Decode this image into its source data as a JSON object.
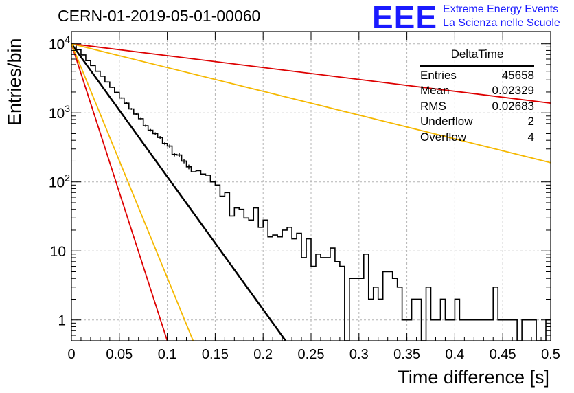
{
  "title": "CERN-01-2019-05-01-00060",
  "logo": {
    "mark": "EEE",
    "line1": "Extreme Energy Events",
    "line2": "La Scienza nelle Scuole"
  },
  "stats_box": {
    "name": "DeltaTime",
    "rows": [
      {
        "label": "Entries",
        "value": "45658"
      },
      {
        "label": "Mean",
        "value": "0.02329"
      },
      {
        "label": "RMS",
        "value": "0.02683"
      },
      {
        "label": "Underflow",
        "value": "2"
      },
      {
        "label": "Overflow",
        "value": "4"
      }
    ]
  },
  "colors": {
    "histogram": "#000000",
    "fit": "#000000",
    "red": "#dd0000",
    "orange": "#f5b800",
    "grid": "#b4b4b4"
  },
  "chart_data": {
    "type": "line",
    "xlabel": "Time difference [s]",
    "ylabel": "Entries/bin",
    "xlim": [
      0,
      0.5
    ],
    "ylim": [
      0.5,
      15000
    ],
    "yscale": "log",
    "grid": true,
    "x_ticks": [
      "0",
      "0.05",
      "0.1",
      "0.15",
      "0.2",
      "0.25",
      "0.3",
      "0.35",
      "0.4",
      "0.45",
      "0.5"
    ],
    "x_tick_values": [
      0,
      0.05,
      0.1,
      0.15,
      0.2,
      0.25,
      0.3,
      0.35,
      0.4,
      0.45,
      0.5
    ],
    "y_ticks": [
      {
        "value": 10000,
        "base": "10",
        "exp": "4"
      },
      {
        "value": 1000,
        "base": "10",
        "exp": "3"
      },
      {
        "value": 100,
        "base": "10",
        "exp": "2"
      },
      {
        "value": 10,
        "base": "10",
        "exp": ""
      },
      {
        "value": 1,
        "base": "1",
        "exp": ""
      }
    ],
    "histogram": {
      "bin_width": 0.005,
      "values": [
        9800,
        8200,
        6900,
        5700,
        4850,
        4000,
        3400,
        2800,
        2350,
        1980,
        1640,
        1380,
        1140,
        960,
        820,
        650,
        560,
        500,
        440,
        360,
        330,
        250,
        245,
        200,
        165,
        140,
        145,
        130,
        125,
        100,
        90,
        62,
        70,
        32,
        42,
        40,
        30,
        28,
        42,
        22,
        28,
        16,
        17,
        16,
        20,
        22,
        15,
        18,
        8,
        15,
        6,
        9,
        8,
        8,
        11,
        7,
        6,
        0,
        4,
        4,
        4,
        9,
        2,
        3,
        2,
        5,
        5,
        4,
        3,
        1,
        1,
        2,
        2,
        0,
        3,
        1,
        1,
        2,
        1,
        1,
        2,
        1,
        1,
        1,
        1,
        1,
        1,
        1,
        3,
        1,
        1,
        1,
        1,
        0,
        1,
        1,
        1,
        0,
        0,
        1
      ]
    },
    "series": [
      {
        "color": "black",
        "x": [
          0,
          0.2235
        ],
        "y": [
          10000,
          0.5
        ]
      },
      {
        "color": "red",
        "x": [
          0,
          0.1
        ],
        "y": [
          10000,
          0.5
        ]
      },
      {
        "color": "orange",
        "x": [
          0,
          0.127
        ],
        "y": [
          10000,
          0.5
        ]
      },
      {
        "color": "red",
        "x": [
          0,
          0.5
        ],
        "y": [
          10000,
          1380
        ]
      },
      {
        "color": "orange",
        "x": [
          0,
          0.5
        ],
        "y": [
          10000,
          190
        ]
      }
    ]
  }
}
